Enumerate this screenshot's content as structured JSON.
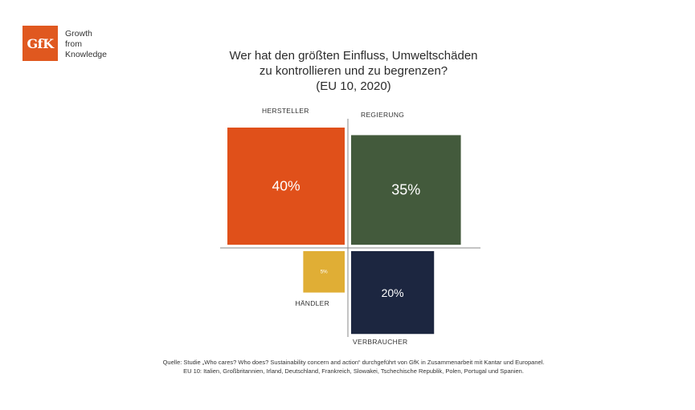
{
  "logo": {
    "mark": "GfK",
    "tagline": [
      "Growth",
      "from",
      "Knowledge"
    ],
    "color": "#e0581f"
  },
  "title_lines": [
    "Wer hat den größten Einfluss, Umweltschäden",
    "zu kontrollieren und zu begrenzen?",
    "(EU 10, 2020)"
  ],
  "chart_data": {
    "type": "quadrant-squares",
    "title": "Wer hat den größten Einfluss, Umweltschäden zu kontrollieren und zu begrenzen? (EU 10, 2020)",
    "items": [
      {
        "category": "HERSTELLER",
        "value": 40,
        "label": "40%",
        "quadrant": "top-left",
        "color": "#e0501a"
      },
      {
        "category": "REGIERUNG",
        "value": 35,
        "label": "35%",
        "quadrant": "top-right",
        "color": "#435a3c"
      },
      {
        "category": "HÄNDLER",
        "value": 5,
        "label": "5%",
        "quadrant": "bottom-left",
        "color": "#e0ae35"
      },
      {
        "category": "VERBRAUCHER",
        "value": 20,
        "label": "20%",
        "quadrant": "bottom-right",
        "color": "#1c2640"
      }
    ],
    "axis_color": "#888888"
  },
  "source_lines": [
    "Quelle: Studie „Who cares? Who does? Sustainability concern and action“ durchgeführt von GfK in Zusammenarbeit mit Kantar und Europanel.",
    "EU 10: Italien, Großbritannien, Irland, Deutschland, Frankreich, Slowakei, Tschechische Republik, Polen, Portugal und Spanien."
  ]
}
